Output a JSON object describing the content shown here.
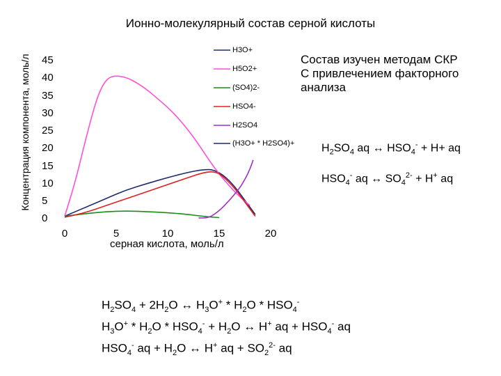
{
  "chart_data": {
    "type": "line",
    "title": "Ионно-молекулярный состав серной кислоты",
    "xlabel": "серная кислота, моль/л",
    "ylabel": "Концентрация компонента, моль/л",
    "xlim": [
      0,
      20
    ],
    "ylim": [
      0,
      45
    ],
    "x_ticks": [
      "0",
      "5",
      "10",
      "15",
      "20"
    ],
    "y_ticks": [
      "45",
      "40",
      "35",
      "30",
      "25",
      "20",
      "15",
      "10",
      "5",
      "0"
    ],
    "grid": false,
    "legend_position": "top-right",
    "series": [
      {
        "name": "H3O+",
        "color": "#1f2a6e",
        "points": [
          [
            0,
            0.5
          ],
          [
            2,
            3
          ],
          [
            4,
            5.5
          ],
          [
            6,
            8
          ],
          [
            8,
            9.8
          ],
          [
            10,
            11.5
          ],
          [
            12,
            13
          ],
          [
            13.5,
            13.8
          ],
          [
            14.5,
            13.7
          ],
          [
            15.5,
            12
          ],
          [
            16.5,
            9
          ],
          [
            17.5,
            5
          ],
          [
            18.5,
            1
          ]
        ]
      },
      {
        "name": "H5O2+",
        "color": "#ff4fd8",
        "points": [
          [
            0,
            0.5
          ],
          [
            1,
            10
          ],
          [
            2,
            22
          ],
          [
            3,
            33
          ],
          [
            3.7,
            38
          ],
          [
            4.3,
            40
          ],
          [
            5,
            40.5
          ],
          [
            6,
            40
          ],
          [
            7,
            38.5
          ],
          [
            8,
            36.5
          ],
          [
            9,
            34
          ],
          [
            10,
            31.5
          ],
          [
            11,
            28.5
          ],
          [
            12,
            25
          ],
          [
            13,
            21
          ],
          [
            14,
            16.5
          ],
          [
            15,
            12.5
          ],
          [
            16,
            9
          ],
          [
            17,
            6
          ],
          [
            18,
            3.5
          ]
        ]
      },
      {
        "name": "(SO4)2-",
        "color": "#1a8c1a",
        "points": [
          [
            0,
            0.5
          ],
          [
            2,
            1.2
          ],
          [
            4,
            1.8
          ],
          [
            6,
            2
          ],
          [
            8,
            1.8
          ],
          [
            10,
            1.5
          ],
          [
            12,
            1
          ],
          [
            13,
            0.6
          ],
          [
            14,
            0.3
          ],
          [
            15,
            0.1
          ]
        ]
      },
      {
        "name": "HSO4-",
        "color": "#e02020",
        "points": [
          [
            0,
            0.2
          ],
          [
            2,
            1.5
          ],
          [
            4,
            3.5
          ],
          [
            6,
            5.5
          ],
          [
            8,
            7.5
          ],
          [
            10,
            9.5
          ],
          [
            12,
            11.5
          ],
          [
            13,
            12.5
          ],
          [
            14,
            13.2
          ],
          [
            14.8,
            13
          ],
          [
            15.5,
            11.5
          ],
          [
            16.5,
            8.5
          ],
          [
            17.5,
            4.5
          ],
          [
            18.5,
            0.5
          ]
        ]
      },
      {
        "name": "H2SO4",
        "color": "#9b30c8",
        "points": [
          [
            13,
            0
          ],
          [
            14,
            0
          ],
          [
            15,
            2
          ],
          [
            16,
            5
          ],
          [
            17,
            8.5
          ],
          [
            17.6,
            11.5
          ],
          [
            18,
            14
          ],
          [
            18.3,
            16.5
          ]
        ]
      },
      {
        "name": "(H3O+ * H2SO4)+",
        "color": "#1f2a6e",
        "points": []
      }
    ]
  },
  "notes": {
    "method_line1": "Состав изучен методам СКР",
    "method_line2": "С привлечением факторного",
    "method_line3": "анализа"
  },
  "equations": {
    "eq1": {
      "a": "H",
      "a_sub": "2",
      "b": "SO",
      "b_sub": "4",
      "c": " aq ↔ HSO",
      "c_sub": "4",
      "c_sup": "-",
      "d": " + H+ aq"
    },
    "eq2": {
      "a": "HSO",
      "a_sub": "4",
      "a_sup": "-",
      "b": " aq ↔ SO",
      "b_sub": "4",
      "b_sup": "2-",
      "c": " + H",
      "c_sup": "+",
      "d": " aq"
    }
  },
  "bottom": {
    "line1": {
      "p1": "H",
      "s1": "2",
      "p2": "SO",
      "s2": "4",
      "p3": " + 2H",
      "s3": "2",
      "p4": "O ↔ H",
      "s4": "3",
      "p5": "O",
      "u5": "+",
      "p6": " * H",
      "s6": "2",
      "p7": "O * HSO",
      "s7": "4",
      "u7": "-"
    },
    "line2": {
      "p1": "H",
      "s1": "3",
      "p2": "O",
      "u2": "+",
      "p3": " * H",
      "s3": "2",
      "p4": "O * HSO",
      "s4": "4",
      "u4": "-",
      "p5": "  + H",
      "s5": "2",
      "p6": "O ↔ H",
      "u6": "+",
      "p7": " aq + HSO",
      "s7": "4",
      "u7": "-",
      "p8": " aq"
    },
    "line3": {
      "p1": "HSO",
      "s1": "4",
      "u1": "-",
      "p2": " aq + H",
      "s2": "2",
      "p3": "O ↔ H",
      "u3": "+",
      "p4": " aq + SO",
      "s4": "2",
      "u4": "2-",
      "p5": " aq"
    }
  }
}
